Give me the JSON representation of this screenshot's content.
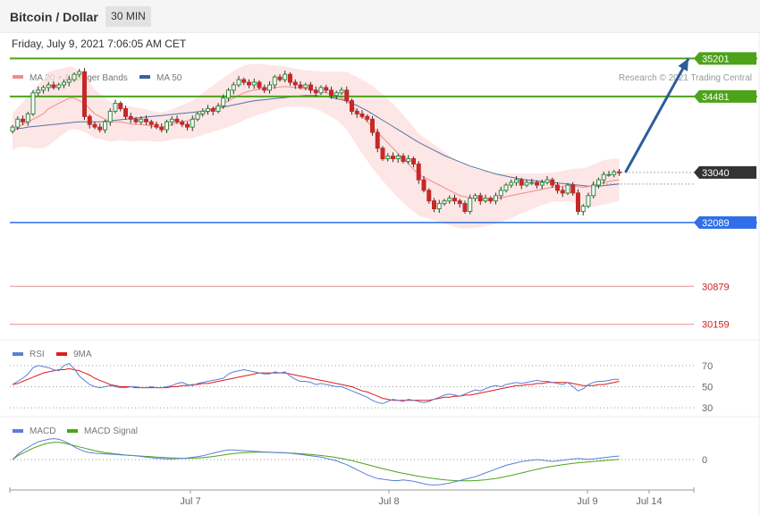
{
  "header": {
    "title": "Bitcoin / Dollar",
    "timeframe": "30 MIN",
    "datetime": "Friday, July 9, 2021 7:06:05 AM CET"
  },
  "colors": {
    "support_green": "#4ca31a",
    "pivot_blue": "#2f6ee8",
    "resistance_red": "#e06060",
    "current_price": "#333333",
    "ma20": "#f28b8b",
    "ma50": "#3a5f9a",
    "band_fill": "#fcdede",
    "rsi": "#5a7fd8",
    "rsi_ma": "#e01b1b",
    "macd": "#5a7fd8",
    "macd_signal": "#4ca31a",
    "arrow": "#2c5d9a"
  },
  "chart_data": [
    {
      "type": "candlestick",
      "id": "price",
      "legend": [
        {
          "label": "MA 20 + Bollinger Bands",
          "color": "#f28b8b"
        },
        {
          "label": "MA 50",
          "color": "#3a5f9a"
        }
      ],
      "copyright": "Research © 2021 Trading Central",
      "ylim": [
        29900,
        35700
      ],
      "x_ticks": [
        "Jul 7",
        "Jul 8",
        "Jul 9",
        "Jul 14"
      ],
      "levels": [
        {
          "value": 35201,
          "label": "35201",
          "style": "support_green"
        },
        {
          "value": 34481,
          "label": "34481",
          "style": "support_green"
        },
        {
          "value": 33040,
          "label": "33040",
          "style": "current_price"
        },
        {
          "value": 32089,
          "label": "32089",
          "style": "pivot_blue"
        },
        {
          "value": 30879,
          "label": "30879",
          "style": "resistance_red"
        },
        {
          "value": 30159,
          "label": "30159",
          "style": "resistance_red"
        }
      ],
      "closes": [
        33900,
        34050,
        34000,
        34150,
        34550,
        34600,
        34650,
        34700,
        34650,
        34700,
        34750,
        34800,
        34900,
        34950,
        34100,
        33950,
        33900,
        33850,
        34000,
        34200,
        34350,
        34250,
        34100,
        34050,
        34000,
        34050,
        34000,
        33950,
        33900,
        33850,
        34000,
        34050,
        34000,
        33950,
        33900,
        34050,
        34150,
        34200,
        34250,
        34200,
        34300,
        34450,
        34600,
        34700,
        34800,
        34750,
        34700,
        34750,
        34650,
        34600,
        34700,
        34850,
        34800,
        34900,
        34750,
        34700,
        34650,
        34700,
        34600,
        34550,
        34650,
        34600,
        34500,
        34550,
        34600,
        34400,
        34200,
        34150,
        34100,
        34050,
        33800,
        33500,
        33300,
        33350,
        33300,
        33350,
        33250,
        33300,
        33200,
        32900,
        32700,
        32500,
        32350,
        32450,
        32500,
        32550,
        32500,
        32450,
        32300,
        32550,
        32600,
        32500,
        32550,
        32500,
        32600,
        32700,
        32800,
        32850,
        32900,
        32800,
        32850,
        32850,
        32800,
        32850,
        32900,
        32800,
        32700,
        32650,
        32800,
        32650,
        32300,
        32400,
        32600,
        32800,
        32900,
        33000,
        33000,
        33050,
        33040
      ],
      "ma20": [
        33800,
        33900,
        33950,
        34000,
        34050,
        34100,
        34150,
        34250,
        34300,
        34350,
        34400,
        34450,
        34450,
        34400,
        34350,
        34250,
        34150,
        34100,
        34050,
        34000,
        34000,
        34000,
        33980,
        33960,
        33950,
        33950,
        33940,
        33920,
        33900,
        33900,
        33920,
        33950,
        33980,
        34000,
        34020,
        34050,
        34100,
        34150,
        34200,
        34250,
        34300,
        34350,
        34400,
        34450,
        34500,
        34550,
        34580,
        34600,
        34620,
        34630,
        34640,
        34650,
        34660,
        34670,
        34660,
        34650,
        34640,
        34630,
        34620,
        34600,
        34580,
        34550,
        34520,
        34500,
        34450,
        34400,
        34300,
        34200,
        34100,
        34000,
        33900,
        33800,
        33700,
        33600,
        33500,
        33400,
        33300,
        33200,
        33100,
        33000,
        32950,
        32900,
        32850,
        32800,
        32750,
        32700,
        32650,
        32600,
        32580,
        32560,
        32550,
        32540,
        32540,
        32540,
        32550,
        32560,
        32580,
        32600,
        32620,
        32640,
        32660,
        32680,
        32700,
        32720,
        32740,
        32760,
        32770,
        32780,
        32790,
        32790,
        32770,
        32760,
        32770,
        32790,
        32820,
        32850,
        32870,
        32890,
        32900
      ],
      "ma50": [
        33850,
        33870,
        33880,
        33900,
        33910,
        33920,
        33930,
        33940,
        33950,
        33960,
        33970,
        33980,
        33990,
        34000,
        34000,
        34000,
        34000,
        34000,
        34010,
        34020,
        34030,
        34040,
        34050,
        34060,
        34070,
        34080,
        34090,
        34100,
        34110,
        34120,
        34130,
        34140,
        34150,
        34160,
        34170,
        34180,
        34190,
        34200,
        34220,
        34240,
        34260,
        34280,
        34300,
        34320,
        34340,
        34360,
        34380,
        34400,
        34410,
        34420,
        34430,
        34440,
        34450,
        34460,
        34470,
        34480,
        34490,
        34500,
        34500,
        34500,
        34490,
        34480,
        34460,
        34440,
        34420,
        34390,
        34350,
        34310,
        34260,
        34210,
        34150,
        34090,
        34030,
        33970,
        33910,
        33850,
        33790,
        33730,
        33670,
        33610,
        33560,
        33510,
        33460,
        33410,
        33360,
        33320,
        33280,
        33240,
        33200,
        33160,
        33130,
        33100,
        33070,
        33040,
        33010,
        32990,
        32970,
        32950,
        32930,
        32910,
        32900,
        32890,
        32880,
        32870,
        32860,
        32850,
        32840,
        32830,
        32820,
        32810,
        32800,
        32790,
        32780,
        32780,
        32780,
        32790,
        32800,
        32810,
        32820
      ],
      "band_width": [
        350,
        380,
        420,
        480,
        550,
        600,
        650,
        700,
        680,
        650,
        620,
        600,
        580,
        560,
        540,
        500,
        460,
        430,
        400,
        380,
        360,
        350,
        340,
        330,
        320,
        310,
        300,
        290,
        280,
        280,
        280,
        290,
        300,
        320,
        340,
        360,
        380,
        400,
        420,
        440,
        460,
        480,
        500,
        510,
        520,
        520,
        510,
        500,
        480,
        460,
        440,
        420,
        400,
        380,
        370,
        360,
        350,
        350,
        350,
        360,
        380,
        400,
        430,
        460,
        500,
        550,
        600,
        650,
        700,
        740,
        780,
        800,
        820,
        830,
        840,
        840,
        830,
        820,
        800,
        780,
        760,
        740,
        720,
        700,
        680,
        660,
        640,
        620,
        600,
        580,
        560,
        540,
        520,
        500,
        480,
        460,
        440,
        420,
        400,
        380,
        360,
        340,
        320,
        300,
        290,
        280,
        280,
        290,
        300,
        320,
        340,
        360,
        380,
        400,
        410,
        420,
        420,
        410,
        400
      ],
      "projection": {
        "from_value": 33040,
        "to_value": 35201
      }
    },
    {
      "type": "line",
      "id": "rsi",
      "series": [
        {
          "name": "RSI",
          "color": "#5a7fd8",
          "values": [
            52,
            55,
            58,
            62,
            68,
            70,
            69,
            68,
            66,
            65,
            70,
            72,
            67,
            60,
            56,
            52,
            50,
            49,
            50,
            51,
            50,
            49,
            49,
            50,
            50,
            49,
            49,
            50,
            49,
            49,
            50,
            51,
            53,
            54,
            52,
            51,
            53,
            54,
            55,
            56,
            57,
            58,
            62,
            64,
            65,
            66,
            65,
            64,
            63,
            62,
            62,
            64,
            63,
            64,
            60,
            57,
            55,
            55,
            54,
            52,
            53,
            52,
            51,
            50,
            50,
            48,
            46,
            44,
            42,
            40,
            37,
            35,
            34,
            36,
            38,
            37,
            36,
            38,
            37,
            36,
            35,
            36,
            38,
            40,
            42,
            43,
            42,
            41,
            43,
            45,
            47,
            46,
            48,
            50,
            51,
            50,
            52,
            53,
            54,
            53,
            54,
            55,
            56,
            55,
            55,
            54,
            53,
            52,
            54,
            50,
            46,
            48,
            52,
            54,
            55,
            55,
            56,
            57,
            57
          ]
        },
        {
          "name": "9MA",
          "color": "#e01b1b",
          "values": [
            52,
            53,
            55,
            57,
            59,
            61,
            63,
            64,
            65,
            66,
            66,
            67,
            66,
            65,
            63,
            61,
            58,
            56,
            54,
            52,
            51,
            50,
            50,
            50,
            49,
            49,
            49,
            49,
            49,
            49,
            49,
            50,
            50,
            51,
            51,
            52,
            52,
            53,
            53,
            54,
            55,
            56,
            57,
            58,
            59,
            60,
            61,
            62,
            63,
            63,
            63,
            63,
            63,
            63,
            62,
            61,
            60,
            59,
            58,
            57,
            56,
            55,
            54,
            53,
            52,
            51,
            50,
            48,
            46,
            45,
            43,
            41,
            39,
            38,
            37,
            37,
            37,
            37,
            37,
            37,
            37,
            37,
            38,
            39,
            40,
            40,
            41,
            41,
            42,
            42,
            43,
            44,
            45,
            46,
            47,
            48,
            49,
            50,
            51,
            51,
            52,
            52,
            53,
            53,
            54,
            54,
            54,
            54,
            54,
            53,
            52,
            51,
            51,
            51,
            52,
            52,
            53,
            54,
            55
          ]
        }
      ],
      "y_ticks": [
        "70",
        "50",
        "30"
      ],
      "ylim": [
        25,
        80
      ]
    },
    {
      "type": "line",
      "id": "macd",
      "series": [
        {
          "name": "MACD",
          "color": "#5a7fd8",
          "values": [
            0,
            80,
            140,
            190,
            240,
            280,
            300,
            320,
            330,
            320,
            290,
            250,
            200,
            160,
            130,
            110,
            100,
            95,
            90,
            85,
            80,
            75,
            70,
            65,
            60,
            50,
            40,
            30,
            20,
            15,
            10,
            12,
            15,
            20,
            25,
            35,
            45,
            60,
            80,
            100,
            120,
            140,
            150,
            150,
            145,
            140,
            135,
            130,
            125,
            120,
            115,
            110,
            108,
            105,
            100,
            90,
            80,
            70,
            60,
            50,
            40,
            20,
            0,
            -20,
            -50,
            -80,
            -120,
            -160,
            -200,
            -240,
            -270,
            -300,
            -310,
            -320,
            -330,
            -330,
            -320,
            -330,
            -340,
            -360,
            -380,
            -395,
            -400,
            -395,
            -385,
            -370,
            -350,
            -330,
            -310,
            -290,
            -270,
            -240,
            -210,
            -180,
            -150,
            -120,
            -90,
            -70,
            -50,
            -30,
            -20,
            -10,
            0,
            -10,
            -20,
            -30,
            -20,
            -10,
            0,
            10,
            15,
            10,
            5,
            10,
            20,
            30,
            40,
            50,
            55
          ]
        },
        {
          "name": "MACD Signal",
          "color": "#4ca31a",
          "values": [
            0,
            60,
            100,
            140,
            180,
            210,
            240,
            260,
            270,
            270,
            260,
            240,
            220,
            200,
            180,
            160,
            140,
            125,
            110,
            100,
            90,
            80,
            70,
            65,
            60,
            55,
            50,
            45,
            40,
            35,
            30,
            25,
            22,
            20,
            20,
            22,
            25,
            30,
            38,
            48,
            60,
            72,
            84,
            94,
            102,
            108,
            112,
            115,
            116,
            116,
            115,
            113,
            110,
            107,
            103,
            98,
            92,
            86,
            79,
            72,
            64,
            55,
            44,
            32,
            18,
            2,
            -16,
            -36,
            -57,
            -79,
            -100,
            -121,
            -142,
            -162,
            -181,
            -199,
            -216,
            -232,
            -247,
            -261,
            -275,
            -288,
            -300,
            -310,
            -318,
            -325,
            -330,
            -333,
            -334,
            -333,
            -330,
            -325,
            -318,
            -308,
            -296,
            -282,
            -266,
            -249,
            -230,
            -211,
            -191,
            -172,
            -153,
            -135,
            -120,
            -106,
            -93,
            -81,
            -70,
            -60,
            -51,
            -43,
            -36,
            -29,
            -22,
            -15,
            -8,
            -1,
            5
          ]
        }
      ],
      "y_ticks": [
        "0"
      ],
      "ylim": [
        -450,
        380
      ]
    }
  ]
}
